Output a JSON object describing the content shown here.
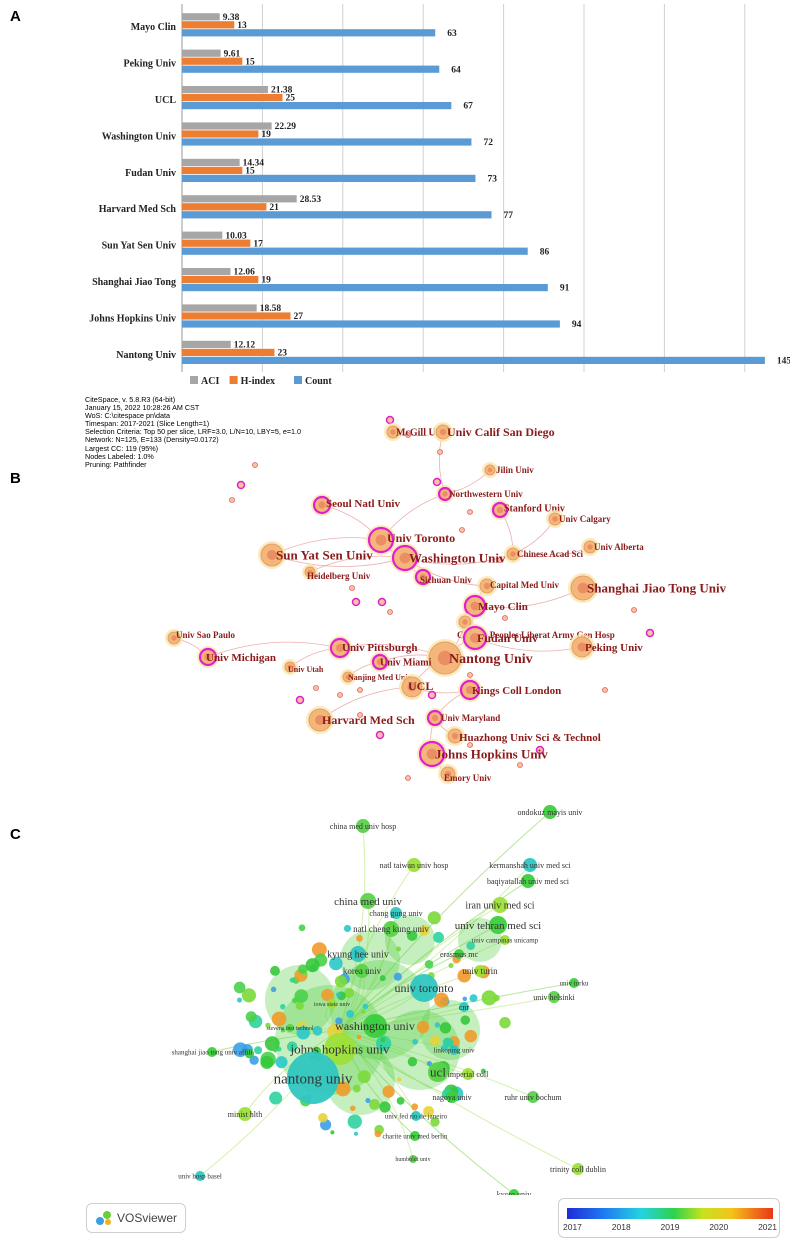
{
  "panels": {
    "a": "A",
    "b": "B",
    "c": "C"
  },
  "colors": {
    "aci": "#a6a6a6",
    "hindex": "#ed7d31",
    "count": "#5b9bd5",
    "grid": "#d0d0d0",
    "csLabel": "#8b1a1a",
    "csRing": "#e020d0",
    "vosText": "#333333"
  },
  "chart_data": {
    "type": "bar",
    "orientation": "horizontal",
    "title": "",
    "categories": [
      "Mayo Clin",
      "Peking Univ",
      "UCL",
      "Washington Univ",
      "Fudan Univ",
      "Harvard Med Sch",
      "Sun Yat Sen Univ",
      "Shanghai Jiao Tong",
      "Johns Hopkins Univ",
      "Nantong Univ"
    ],
    "series": [
      {
        "name": "ACI",
        "values": [
          "9.38",
          "9.61",
          "21.38",
          "22.29",
          "14.34",
          "28.53",
          "10.03",
          "12.06",
          "18.58",
          "12.12"
        ]
      },
      {
        "name": "H-index",
        "values": [
          "13",
          "15",
          "25",
          "19",
          "15",
          "21",
          "17",
          "19",
          "27",
          "23"
        ]
      },
      {
        "name": "Count",
        "values": [
          "63",
          "64",
          "67",
          "72",
          "73",
          "77",
          "86",
          "91",
          "94",
          "145"
        ]
      }
    ],
    "xlim": [
      0,
      150
    ],
    "grid": true,
    "legend": "bottom"
  },
  "citespace": {
    "meta": [
      "CiteSpace, v. 5.8.R3 (64-bit)",
      "January 15, 2022 10:28:26 AM CST",
      "WoS: C:\\citespace pn\\data",
      "Timespan: 2017-2021 (Slice Length=1)",
      "Selection Criteria: Top 50 per slice, LRF=3.0, L/N=10, LBY=5, e=1.0",
      "Network: N=125, E=133 (Density=0.0172)",
      "Largest CC: 119 (95%)",
      "Nodes Labeled: 1.0%",
      "Pruning: Pathfinder"
    ],
    "nodes": [
      {
        "label": "McGill Univ",
        "size": 6,
        "ring": false
      },
      {
        "label": "Univ Calif San Diego",
        "size": 7,
        "ring": false
      },
      {
        "label": "Jilin Univ",
        "size": 5,
        "ring": false
      },
      {
        "label": "Northwestern Univ",
        "size": 6,
        "ring": true
      },
      {
        "label": "Seoul Natl Univ",
        "size": 8,
        "ring": true
      },
      {
        "label": "Stanford Univ",
        "size": 7,
        "ring": true
      },
      {
        "label": "Univ Calgary",
        "size": 6,
        "ring": false
      },
      {
        "label": "Univ Toronto",
        "size": 12,
        "ring": true
      },
      {
        "label": "Sun Yat Sen Univ",
        "size": 11,
        "ring": false
      },
      {
        "label": "Washington Univ",
        "size": 12,
        "ring": true
      },
      {
        "label": "Chinese Acad Sci",
        "size": 6,
        "ring": false
      },
      {
        "label": "Univ Alberta",
        "size": 6,
        "ring": false
      },
      {
        "label": "Heidelberg Univ",
        "size": 5,
        "ring": false
      },
      {
        "label": "Sichuan Univ",
        "size": 7,
        "ring": true
      },
      {
        "label": "Capital Med Univ",
        "size": 7,
        "ring": false
      },
      {
        "label": "Shanghai Jiao Tong Univ",
        "size": 12,
        "ring": false
      },
      {
        "label": "Mayo Clin",
        "size": 10,
        "ring": true
      },
      {
        "label": "Chinese Peoples Liberat Army Gen Hosp",
        "size": 6,
        "ring": false
      },
      {
        "label": "Univ Sao Paulo",
        "size": 6,
        "ring": false
      },
      {
        "label": "Fudan Univ",
        "size": 11,
        "ring": true
      },
      {
        "label": "Peking Univ",
        "size": 10,
        "ring": false
      },
      {
        "label": "Univ Michigan",
        "size": 8,
        "ring": true
      },
      {
        "label": "Univ Pittsburgh",
        "size": 9,
        "ring": true
      },
      {
        "label": "Nantong Univ",
        "size": 16,
        "ring": false
      },
      {
        "label": "Univ Utah",
        "size": 5,
        "ring": false
      },
      {
        "label": "Univ Miami",
        "size": 7,
        "ring": true
      },
      {
        "label": "Nanjing Med Univ",
        "size": 5,
        "ring": false
      },
      {
        "label": "UCL",
        "size": 10,
        "ring": false
      },
      {
        "label": "Kings Coll London",
        "size": 9,
        "ring": true
      },
      {
        "label": "Harvard Med Sch",
        "size": 11,
        "ring": false
      },
      {
        "label": "Univ Maryland",
        "size": 7,
        "ring": true
      },
      {
        "label": "Huazhong Univ Sci & Technol",
        "size": 7,
        "ring": false
      },
      {
        "label": "Johns Hopkins Univ",
        "size": 12,
        "ring": true
      },
      {
        "label": "Emory Univ",
        "size": 7,
        "ring": false
      }
    ]
  },
  "vosviewer": {
    "labels": [
      "ondokuz mayis univ",
      "china med univ hosp",
      "natl taiwan univ hosp",
      "kermanshah univ med sci",
      "baqiyatallah univ med sci",
      "china med univ",
      "iran univ med sci",
      "chang gung univ",
      "univ tehran med sci",
      "natl cheng kung univ",
      "univ campinas unicamp",
      "kyung hee univ",
      "erasmus mc",
      "korea univ",
      "univ turin",
      "univ toronto",
      "univ turku",
      "univ helsinki",
      "iowa state univ",
      "cnr",
      "washington univ",
      "stevens inst technol",
      "johns hopkins univ",
      "linkoping univ",
      "shanghai jiao tong univ affili",
      "ucl",
      "imperial coll",
      "nantong univ",
      "nagoya univ",
      "ruhr univ bochum",
      "minist hlth",
      "univ fed rio de janeiro",
      "charite univ med berlin",
      "humboldt univ",
      "trinity coll dublin",
      "univ hosp basel",
      "kyoto univ"
    ],
    "logo_text": "VOSviewer",
    "colorbar_ticks": [
      "2017",
      "2018",
      "2019",
      "2020",
      "2021"
    ]
  }
}
